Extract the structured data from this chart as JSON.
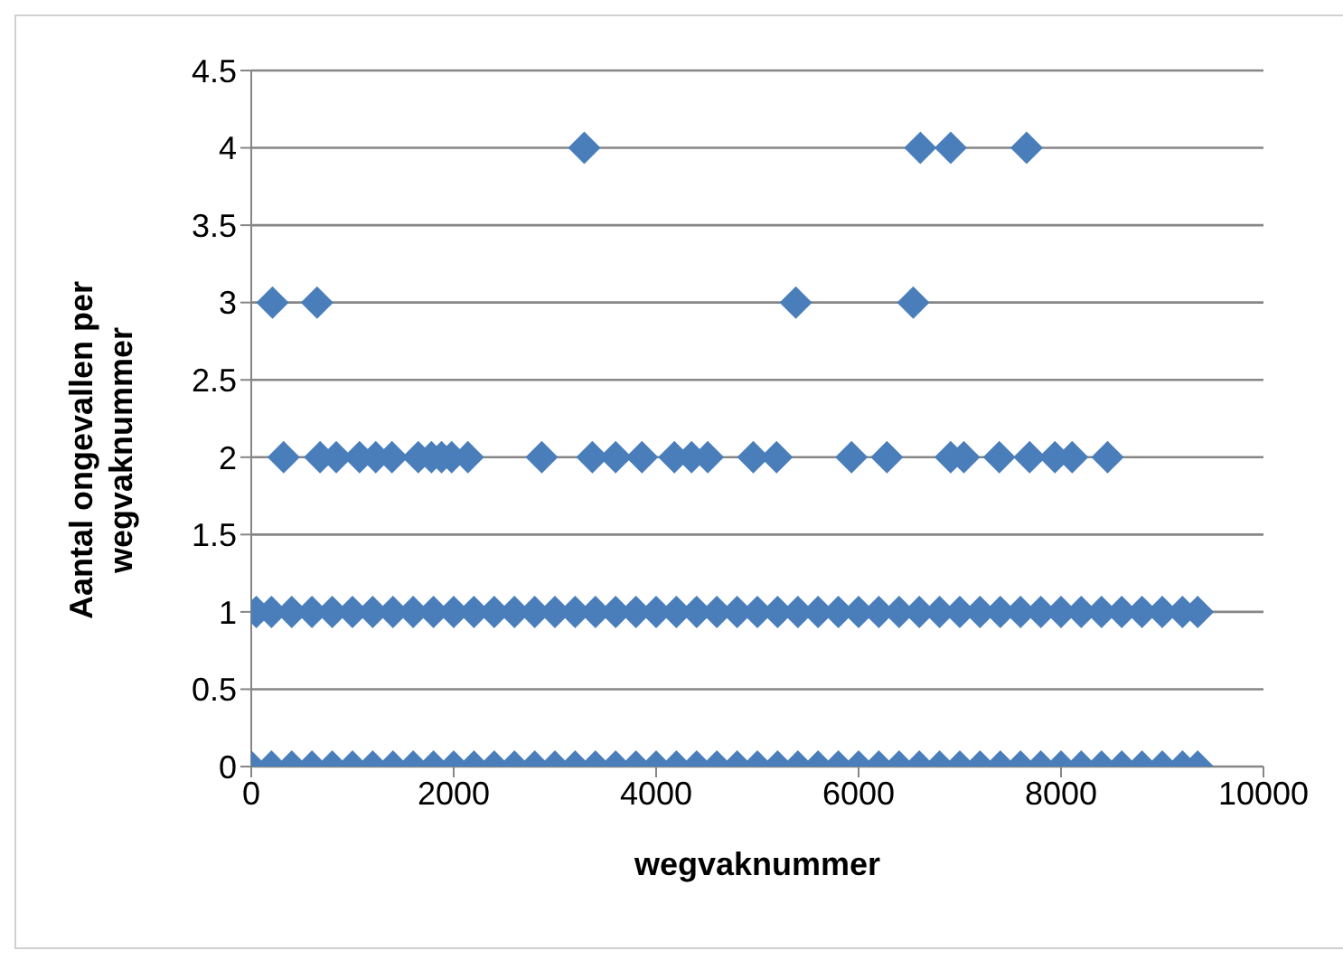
{
  "chart_data": {
    "type": "scatter",
    "xlabel": "wegvaknummer",
    "ylabel": "Aantal ongevallen per wegvaknummer",
    "xlim": [
      0,
      10000
    ],
    "xticks": [
      0,
      2000,
      4000,
      6000,
      8000,
      10000
    ],
    "ylim": [
      0,
      4.5
    ],
    "yticks": [
      0,
      0.5,
      1,
      1.5,
      2,
      2.5,
      3,
      3.5,
      4,
      4.5
    ],
    "grid": "y",
    "marker": "diamond",
    "series": [
      {
        "color": "#4a7ebb",
        "x": [
          0,
          200,
          400,
          600,
          800,
          1000,
          1200,
          1400,
          1600,
          1800,
          2000,
          2200,
          2400,
          2600,
          2800,
          3000,
          3200,
          3400,
          3600,
          3800,
          4000,
          4200,
          4400,
          4600,
          4800,
          5000,
          5200,
          5400,
          5600,
          5800,
          6000,
          6200,
          6400,
          6600,
          6800,
          7000,
          7200,
          7400,
          7600,
          7800,
          8000,
          8200,
          8400,
          8600,
          8800,
          9000,
          9200,
          9350
        ],
        "values": [
          0,
          0,
          0,
          0,
          0,
          0,
          0,
          0,
          0,
          0,
          0,
          0,
          0,
          0,
          0,
          0,
          0,
          0,
          0,
          0,
          0,
          0,
          0,
          0,
          0,
          0,
          0,
          0,
          0,
          0,
          0,
          0,
          0,
          0,
          0,
          0,
          0,
          0,
          0,
          0,
          0,
          0,
          0,
          0,
          0,
          0,
          0,
          0
        ]
      },
      {
        "color": "#4a7ebb",
        "x": [
          50,
          200,
          400,
          600,
          800,
          1000,
          1200,
          1400,
          1600,
          1800,
          2000,
          2200,
          2400,
          2600,
          2800,
          3000,
          3200,
          3400,
          3600,
          3800,
          4000,
          4200,
          4400,
          4600,
          4800,
          5000,
          5200,
          5400,
          5600,
          5800,
          6000,
          6200,
          6400,
          6600,
          6800,
          7000,
          7200,
          7400,
          7600,
          7800,
          8000,
          8200,
          8400,
          8600,
          8800,
          9000,
          9200,
          9350
        ],
        "values": [
          1,
          1,
          1,
          1,
          1,
          1,
          1,
          1,
          1,
          1,
          1,
          1,
          1,
          1,
          1,
          1,
          1,
          1,
          1,
          1,
          1,
          1,
          1,
          1,
          1,
          1,
          1,
          1,
          1,
          1,
          1,
          1,
          1,
          1,
          1,
          1,
          1,
          1,
          1,
          1,
          1,
          1,
          1,
          1,
          1,
          1,
          1,
          1
        ]
      },
      {
        "color": "#4a7ebb",
        "x": [
          320,
          680,
          840,
          1070,
          1230,
          1390,
          1650,
          1780,
          1880,
          1980,
          2140,
          2870,
          3370,
          3600,
          3860,
          4180,
          4350,
          4510,
          4960,
          5190,
          5930,
          6280,
          6910,
          7040,
          7390,
          7690,
          7940,
          8110,
          8460
        ],
        "values": [
          2,
          2,
          2,
          2,
          2,
          2,
          2,
          2,
          2,
          2,
          2,
          2,
          2,
          2,
          2,
          2,
          2,
          2,
          2,
          2,
          2,
          2,
          2,
          2,
          2,
          2,
          2,
          2,
          2
        ]
      },
      {
        "color": "#4a7ebb",
        "x": [
          210,
          650,
          5380,
          6540
        ],
        "values": [
          3,
          3,
          3,
          3
        ]
      },
      {
        "color": "#4a7ebb",
        "x": [
          3290,
          6610,
          6910,
          7660
        ],
        "values": [
          4,
          4,
          4,
          4
        ]
      }
    ]
  }
}
